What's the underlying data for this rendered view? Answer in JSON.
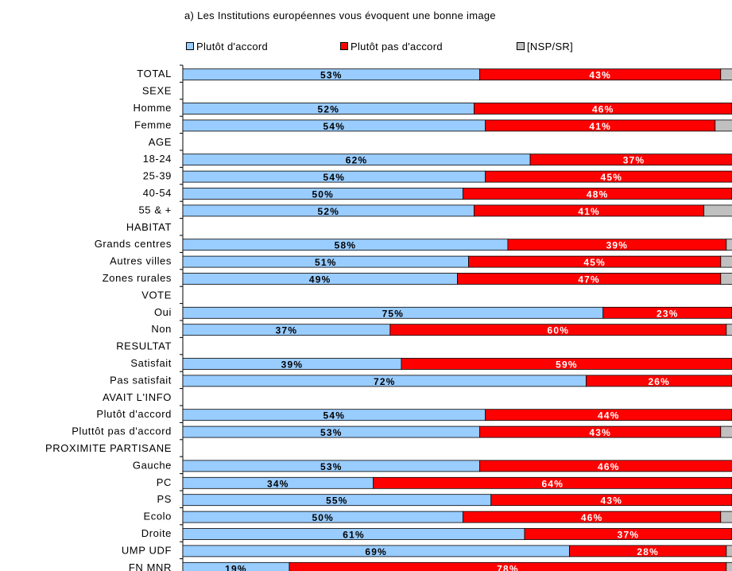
{
  "chart_data": {
    "type": "bar",
    "stacked": true,
    "orientation": "horizontal",
    "title": "a) Les Institutions européennes vous évoquent une bonne image",
    "legend_placement": "top",
    "series": [
      {
        "name": "Plutôt d'accord",
        "color": "#99ccff"
      },
      {
        "name": "Plutôt pas d'accord",
        "color": "#ff0000"
      },
      {
        "name": "[NSP/SR]",
        "color": "#c0c0c0"
      }
    ],
    "rows": [
      {
        "label": "TOTAL",
        "values": [
          53,
          43,
          4
        ]
      },
      {
        "label": "SEXE",
        "values": null
      },
      {
        "label": "Homme",
        "values": [
          52,
          46,
          2
        ]
      },
      {
        "label": "Femme",
        "values": [
          54,
          41,
          5
        ]
      },
      {
        "label": "AGE",
        "values": null
      },
      {
        "label": "18-24",
        "values": [
          62,
          37,
          1
        ]
      },
      {
        "label": "25-39",
        "values": [
          54,
          45,
          1
        ]
      },
      {
        "label": "40-54",
        "values": [
          50,
          48,
          2
        ]
      },
      {
        "label": "55 & +",
        "values": [
          52,
          41,
          7
        ]
      },
      {
        "label": "HABITAT",
        "values": null
      },
      {
        "label": "Grands centres",
        "values": [
          58,
          39,
          3
        ]
      },
      {
        "label": "Autres villes",
        "values": [
          51,
          45,
          4
        ]
      },
      {
        "label": "Zones rurales",
        "values": [
          49,
          47,
          4
        ]
      },
      {
        "label": "VOTE",
        "values": null
      },
      {
        "label": "Oui",
        "values": [
          75,
          23,
          2
        ]
      },
      {
        "label": "Non",
        "values": [
          37,
          60,
          3
        ]
      },
      {
        "label": "RESULTAT",
        "values": null
      },
      {
        "label": "Satisfait",
        "values": [
          39,
          59,
          2
        ]
      },
      {
        "label": "Pas satisfait",
        "values": [
          72,
          26,
          2
        ]
      },
      {
        "label": "AVAIT L'INFO",
        "values": null
      },
      {
        "label": "Plutôt d'accord",
        "values": [
          54,
          44,
          2
        ]
      },
      {
        "label": "Pluttôt pas d'accord",
        "values": [
          53,
          43,
          4
        ]
      },
      {
        "label": "PROXIMITE PARTISANE",
        "values": null
      },
      {
        "label": "Gauche",
        "values": [
          53,
          46,
          1
        ]
      },
      {
        "label": "PC",
        "values": [
          34,
          64,
          2
        ]
      },
      {
        "label": "PS",
        "values": [
          55,
          43,
          2
        ]
      },
      {
        "label": "Ecolo",
        "values": [
          50,
          46,
          4
        ]
      },
      {
        "label": "Droite",
        "values": [
          61,
          37,
          2
        ]
      },
      {
        "label": "UMP UDF",
        "values": [
          69,
          28,
          3
        ]
      },
      {
        "label": "FN MNR",
        "values": [
          19,
          78,
          3
        ]
      }
    ]
  }
}
